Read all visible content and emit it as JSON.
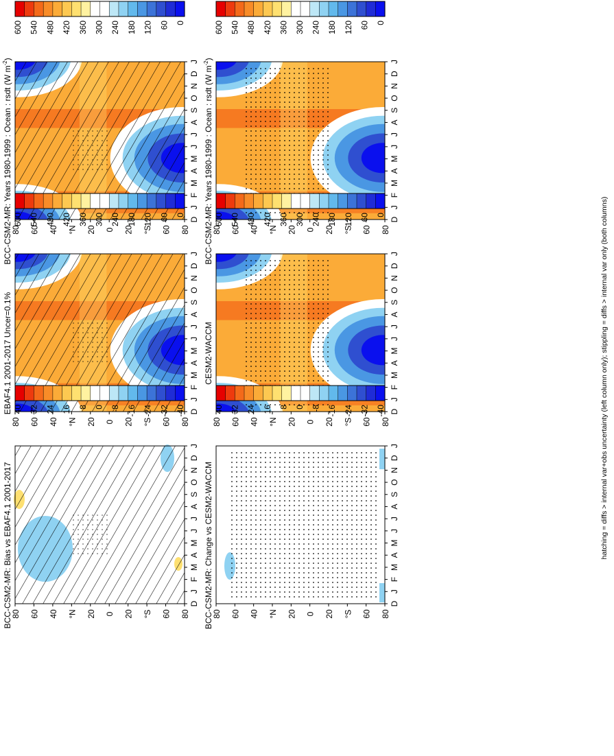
{
  "footnote": "hatching = diffs > internal var+obs uncertainty (left column only); stippling = diffs > internal var only (both columns)",
  "colorbars": {
    "abs": [
      "600",
      "540",
      "480",
      "420",
      "360",
      "300",
      "240",
      "180",
      "120",
      "60",
      "0"
    ],
    "diff": [
      "40",
      "32",
      "24",
      "16",
      "8",
      "0",
      "-8",
      "-16",
      "-24",
      "-32",
      "-40"
    ]
  },
  "colors": {
    "abs_scale": [
      "#e60000",
      "#ee3a0e",
      "#f46a1a",
      "#f88c28",
      "#fbab38",
      "#fdc851",
      "#fee070",
      "#fff2a0",
      "#ffffff",
      "#ffffff",
      "#bde7f6",
      "#8fd2f2",
      "#62b9ec",
      "#4a97e3",
      "#3c73d8",
      "#2f4fd0",
      "#1f2cd6",
      "#0a10ee"
    ],
    "diff_scale": [
      "#e60000",
      "#ee3a0e",
      "#f46a1a",
      "#f88c28",
      "#fbab38",
      "#fdc851",
      "#fee070",
      "#fff2a0",
      "#ffffff",
      "#ffffff",
      "#bde7f6",
      "#8fd2f2",
      "#62b9ec",
      "#4a97e3",
      "#3c73d8",
      "#2f4fd0",
      "#1f2cd6",
      "#0a10ee"
    ]
  },
  "chart_data": [
    {
      "id": "top-left",
      "type": "heatmap",
      "title": "BCC-CSM2-MR: Years 1980-1999 : Ocean : rsdt (W m",
      "title_sup": "-2",
      "title_tail": ")",
      "x_ticks": [
        "D",
        "J",
        "F",
        "M",
        "A",
        "M",
        "J",
        "J",
        "A",
        "S",
        "O",
        "N",
        "D",
        "J"
      ],
      "y_ticks": [
        "80",
        "60",
        "40",
        "°N",
        "20",
        "0",
        "20",
        "°S",
        "60",
        "80"
      ],
      "value_range": [
        0,
        600
      ],
      "hatching": true,
      "stippling": "sparse"
    },
    {
      "id": "top-right",
      "type": "heatmap",
      "title": "BCC-CSM2-MR: Years 1980-1999 : Ocean : rsdt (W m",
      "title_sup": "-2",
      "title_tail": ")",
      "x_ticks": [
        "D",
        "J",
        "F",
        "M",
        "A",
        "M",
        "J",
        "J",
        "A",
        "S",
        "O",
        "N",
        "D",
        "J"
      ],
      "y_ticks": [
        "80",
        "60",
        "40",
        "°N",
        "20",
        "0",
        "20",
        "°S",
        "60",
        "80"
      ],
      "value_range": [
        0,
        600
      ],
      "hatching": false,
      "stippling": "dense"
    },
    {
      "id": "middle-left",
      "type": "heatmap",
      "title": "EBAF4.1 2001-2017 Uncer=0.1%",
      "x_ticks": [
        "D",
        "J",
        "F",
        "M",
        "A",
        "M",
        "J",
        "J",
        "A",
        "S",
        "O",
        "N",
        "D",
        "J"
      ],
      "y_ticks": [
        "80",
        "60",
        "40",
        "°N",
        "20",
        "0",
        "20",
        "°S",
        "60",
        "80"
      ],
      "value_range": [
        0,
        600
      ],
      "hatching": true,
      "stippling": "sparse"
    },
    {
      "id": "middle-right",
      "type": "heatmap",
      "title": "CESM2-WACCM",
      "x_ticks": [
        "D",
        "J",
        "F",
        "M",
        "A",
        "M",
        "J",
        "J",
        "A",
        "S",
        "O",
        "N",
        "D",
        "J"
      ],
      "y_ticks": [
        "80",
        "60",
        "40",
        "°N",
        "20",
        "0",
        "20",
        "°S",
        "60",
        "80"
      ],
      "value_range": [
        0,
        600
      ],
      "hatching": false,
      "stippling": "dense"
    },
    {
      "id": "bottom-left",
      "type": "heatmap",
      "title": "BCC-CSM2-MR: Bias vs EBAF4.1 2001-2017",
      "x_ticks": [
        "D",
        "J",
        "F",
        "M",
        "A",
        "M",
        "J",
        "J",
        "A",
        "S",
        "O",
        "N",
        "D",
        "J"
      ],
      "y_ticks": [
        "80",
        "60",
        "40",
        "°N",
        "20",
        "0",
        "20",
        "°S",
        "60",
        "80"
      ],
      "value_range": [
        -40,
        40
      ],
      "hatching": true,
      "stippling": "sparse"
    },
    {
      "id": "bottom-right",
      "type": "heatmap",
      "title": "BCC-CSM2-MR: Change vs CESM2-WACCM",
      "x_ticks": [
        "D",
        "J",
        "F",
        "M",
        "A",
        "M",
        "J",
        "J",
        "A",
        "S",
        "O",
        "N",
        "D",
        "J"
      ],
      "y_ticks": [
        "80",
        "60",
        "40",
        "°N",
        "20",
        "0",
        "20",
        "°S",
        "60",
        "80"
      ],
      "value_range": [
        -40,
        40
      ],
      "hatching": false,
      "stippling": "dense"
    }
  ]
}
